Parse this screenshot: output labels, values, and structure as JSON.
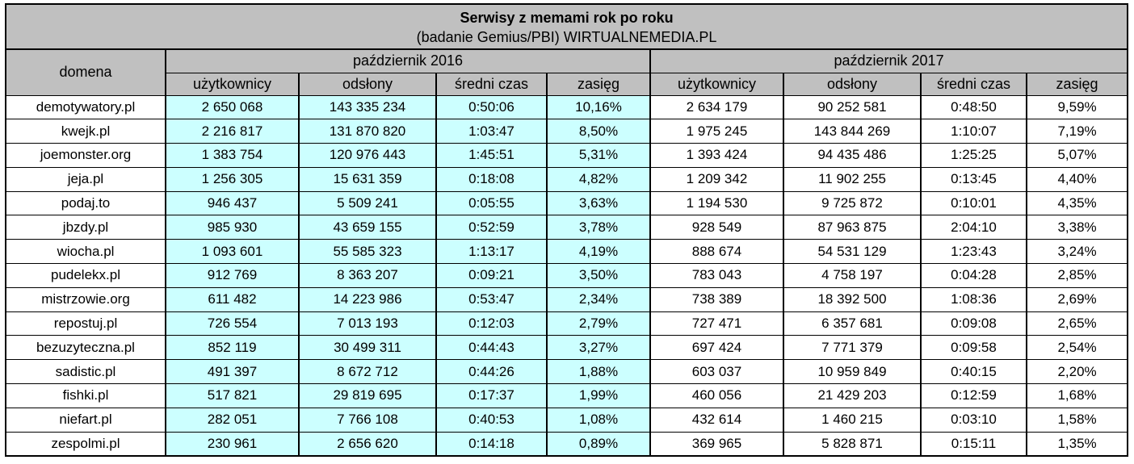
{
  "chart_data": {
    "type": "table",
    "title": "Serwisy z memami rok po roku",
    "subtitle": "(badanie Gemius/PBI) WIRTUALNEMEDIA.PL",
    "row_header": "domena",
    "column_groups": [
      "październik 2016",
      "październik 2017"
    ],
    "columns_per_group": [
      "użytkownicy",
      "odsłony",
      "średni czas",
      "zasięg"
    ],
    "rows": [
      {
        "domain": "demotywatory.pl",
        "values": [
          "2 650 068",
          "143 335 234",
          "0:50:06",
          "10,16%",
          "2 634 179",
          "90 252 581",
          "0:48:50",
          "9,59%"
        ]
      },
      {
        "domain": "kwejk.pl",
        "values": [
          "2 216 817",
          "131 870 820",
          "1:03:47",
          "8,50%",
          "1 975 245",
          "143 844 269",
          "1:10:07",
          "7,19%"
        ]
      },
      {
        "domain": "joemonster.org",
        "values": [
          "1 383 754",
          "120 976 443",
          "1:45:51",
          "5,31%",
          "1 393 424",
          "94 435 486",
          "1:25:25",
          "5,07%"
        ]
      },
      {
        "domain": "jeja.pl",
        "values": [
          "1 256 305",
          "15 631 359",
          "0:18:08",
          "4,82%",
          "1 209 342",
          "11 902 255",
          "0:13:45",
          "4,40%"
        ]
      },
      {
        "domain": "podaj.to",
        "values": [
          "946 437",
          "5 509 241",
          "0:05:55",
          "3,63%",
          "1 194 530",
          "9 725 872",
          "0:10:01",
          "4,35%"
        ]
      },
      {
        "domain": "jbzdy.pl",
        "values": [
          "985 930",
          "43 659 155",
          "0:52:59",
          "3,78%",
          "928 549",
          "87 963 875",
          "2:04:10",
          "3,38%"
        ]
      },
      {
        "domain": "wiocha.pl",
        "values": [
          "1 093 601",
          "55 585 323",
          "1:13:17",
          "4,19%",
          "888 674",
          "54 531 129",
          "1:23:43",
          "3,24%"
        ]
      },
      {
        "domain": "pudelekx.pl",
        "values": [
          "912 769",
          "8 363 207",
          "0:09:21",
          "3,50%",
          "783 043",
          "4 758 197",
          "0:04:28",
          "2,85%"
        ]
      },
      {
        "domain": "mistrzowie.org",
        "values": [
          "611 482",
          "14 223 986",
          "0:53:47",
          "2,34%",
          "738 389",
          "18 392 500",
          "1:08:36",
          "2,69%"
        ]
      },
      {
        "domain": "repostuj.pl",
        "values": [
          "726 554",
          "7 013 193",
          "0:12:03",
          "2,79%",
          "727 471",
          "6 357 681",
          "0:09:08",
          "2,65%"
        ]
      },
      {
        "domain": "bezuzyteczna.pl",
        "values": [
          "852 119",
          "30 499 311",
          "0:44:43",
          "3,27%",
          "697 424",
          "7 771 379",
          "0:09:58",
          "2,54%"
        ]
      },
      {
        "domain": "sadistic.pl",
        "values": [
          "491 397",
          "8 672 712",
          "0:44:26",
          "1,88%",
          "603 037",
          "10 959 849",
          "0:40:15",
          "2,20%"
        ]
      },
      {
        "domain": "fishki.pl",
        "values": [
          "517 821",
          "29 819 695",
          "0:17:37",
          "1,99%",
          "460 056",
          "21 429 203",
          "0:12:59",
          "1,68%"
        ]
      },
      {
        "domain": "niefart.pl",
        "values": [
          "282 051",
          "7 766 108",
          "0:40:53",
          "1,08%",
          "432 614",
          "1 460 215",
          "0:03:10",
          "1,58%"
        ]
      },
      {
        "domain": "zespolmi.pl",
        "values": [
          "230 961",
          "2 656 620",
          "0:14:18",
          "0,89%",
          "369 965",
          "5 828 871",
          "0:15:11",
          "1,35%"
        ]
      }
    ],
    "layout_hints": {
      "highlighted_columns": "październik 2016 data cells",
      "grid": "on"
    }
  },
  "colors": {
    "header_bg": "#c0c0c0",
    "oct2016_highlight_bg": "#ccffff",
    "row_bg": "#ffffff",
    "border": "#000000"
  }
}
